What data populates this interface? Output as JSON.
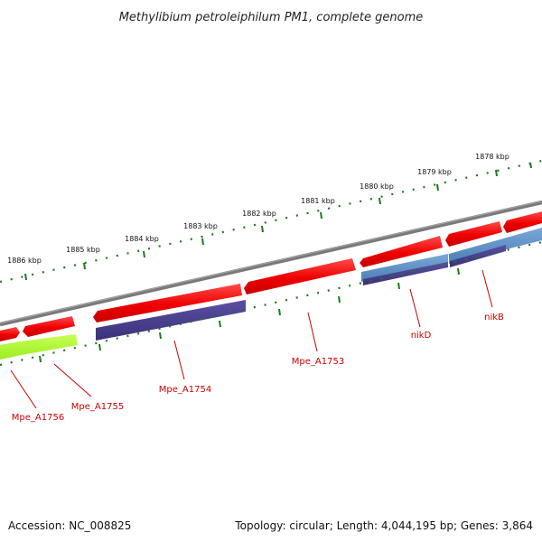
{
  "title": "Methylibium petroleiphilum PM1, complete genome",
  "footer": {
    "accession": "Accession: NC_008825",
    "topology": "Topology: circular; Length: 4,044,195 bp; Genes: 3,864"
  },
  "colors": {
    "genome_line": "#808080",
    "forward_gene": "#ff0000",
    "cds_blue": "#5b8ec4",
    "cds_purple": "#4b3f8c",
    "cds_green": "#aaff33",
    "tick_green": "#1a7a1a",
    "label_red": "#cc0000"
  },
  "ticks": [
    {
      "label": "1878 kbp"
    },
    {
      "label": "1879 kbp"
    },
    {
      "label": "1880 kbp"
    },
    {
      "label": "1881 kbp"
    },
    {
      "label": "1882 kbp"
    },
    {
      "label": "1883 kbp"
    },
    {
      "label": "1884 kbp"
    },
    {
      "label": "1885 kbp"
    },
    {
      "label": "1886 kbp"
    }
  ],
  "genes": [
    {
      "label": "nikB"
    },
    {
      "label": "nikD"
    },
    {
      "label": "Mpe_A1753"
    },
    {
      "label": "Mpe_A1754"
    },
    {
      "label": "Mpe_A1755"
    },
    {
      "label": "Mpe_A1756"
    }
  ]
}
